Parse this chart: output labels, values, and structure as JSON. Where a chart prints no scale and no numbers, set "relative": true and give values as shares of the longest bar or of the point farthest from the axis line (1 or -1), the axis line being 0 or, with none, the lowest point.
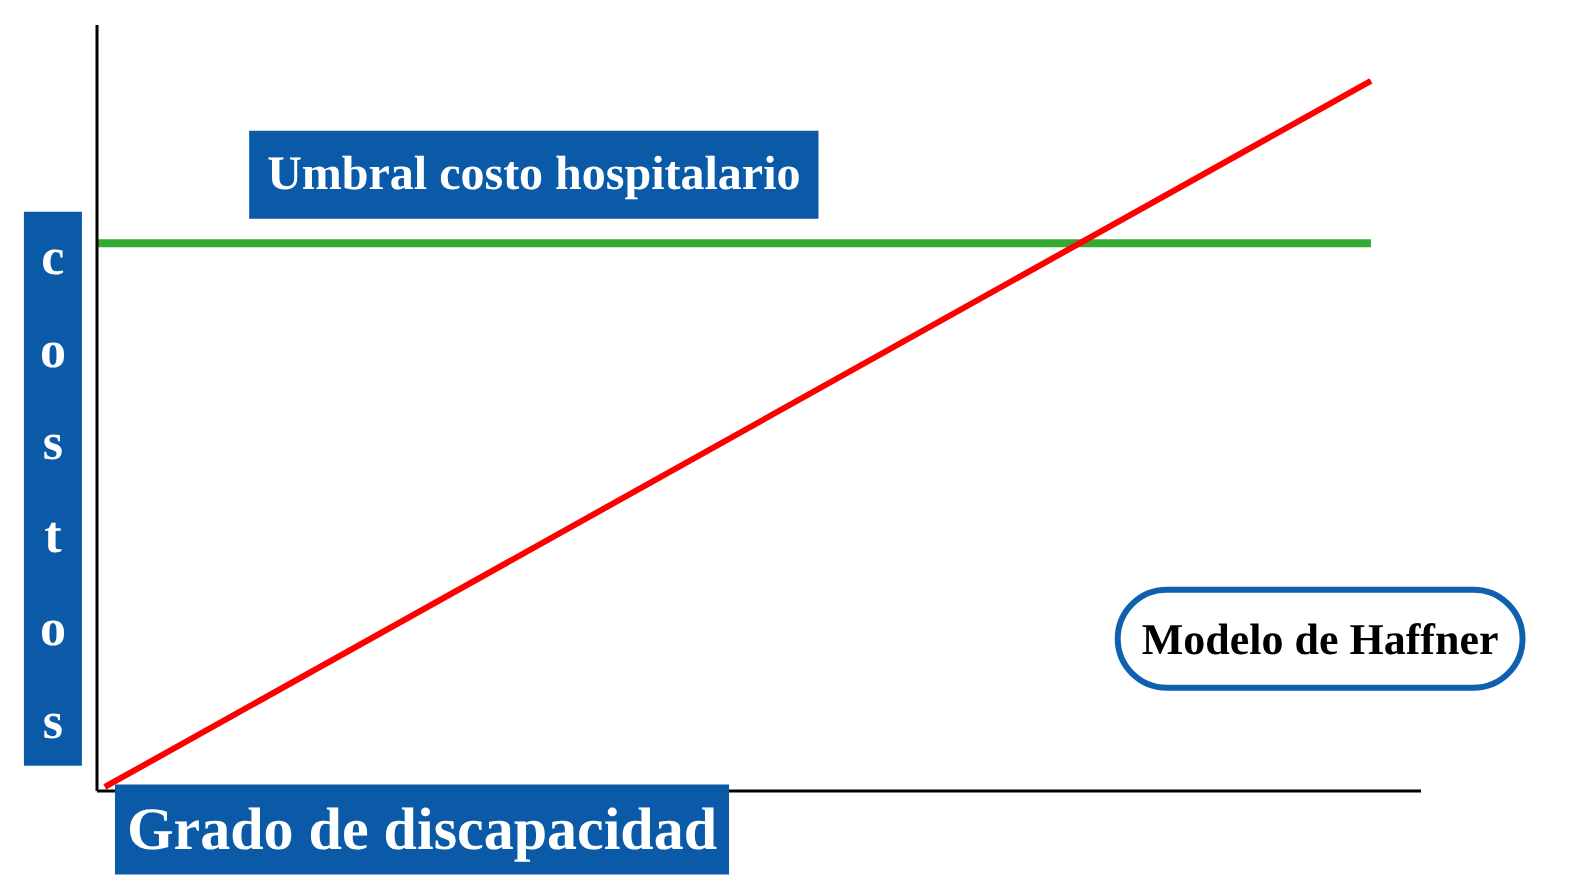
{
  "chart_data": {
    "type": "line",
    "relative": true,
    "categories": [
      null,
      null
    ],
    "series": [
      {
        "color": "#ff0000",
        "values": [
          0,
          1
        ]
      }
    ],
    "xlabel": "Grado de discapacidad",
    "ylabel": "costos",
    "ref_lines": [
      {
        "axis": "y",
        "value": 0.77,
        "label": "Umbral costo hospitalario",
        "color": "#33aa33"
      }
    ],
    "annotations": [
      "Modelo de Haffner"
    ],
    "grid": false
  }
}
